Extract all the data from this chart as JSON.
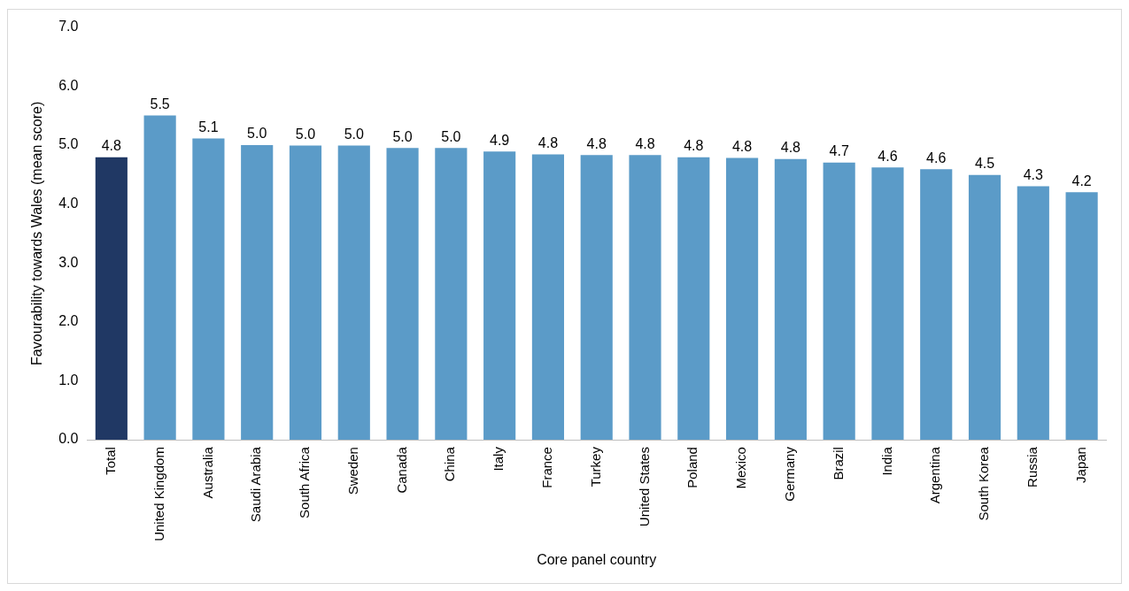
{
  "chart_data": {
    "type": "bar",
    "xlabel": "Core panel country",
    "ylabel": "Favourability towards Wales (mean score)",
    "categories": [
      "Total",
      "United Kingdom",
      "Australia",
      "Saudi Arabia",
      "South Africa",
      "Sweden",
      "Canada",
      "China",
      "Italy",
      "France",
      "Turkey",
      "United States",
      "Poland",
      "Mexico",
      "Germany",
      "Brazil",
      "India",
      "Argentina",
      "South Korea",
      "Russia",
      "Japan"
    ],
    "values": [
      4.79,
      5.5,
      5.11,
      5.0,
      4.99,
      4.99,
      4.95,
      4.95,
      4.89,
      4.84,
      4.83,
      4.83,
      4.79,
      4.78,
      4.76,
      4.7,
      4.62,
      4.59,
      4.49,
      4.3,
      4.2
    ],
    "value_labels": [
      "4.8",
      "5.5",
      "5.1",
      "5.0",
      "5.0",
      "5.0",
      "5.0",
      "5.0",
      "4.9",
      "4.8",
      "4.8",
      "4.8",
      "4.8",
      "4.8",
      "4.8",
      "4.7",
      "4.6",
      "4.6",
      "4.5",
      "4.3",
      "4.2"
    ],
    "colors": [
      "#203864",
      "#5b9bc8",
      "#5b9bc8",
      "#5b9bc8",
      "#5b9bc8",
      "#5b9bc8",
      "#5b9bc8",
      "#5b9bc8",
      "#5b9bc8",
      "#5b9bc8",
      "#5b9bc8",
      "#5b9bc8",
      "#5b9bc8",
      "#5b9bc8",
      "#5b9bc8",
      "#5b9bc8",
      "#5b9bc8",
      "#5b9bc8",
      "#5b9bc8",
      "#5b9bc8",
      "#5b9bc8"
    ],
    "ylim": [
      0,
      7
    ],
    "yticks": [
      {
        "value": 0,
        "label": "0.0"
      },
      {
        "value": 1,
        "label": "1.0"
      },
      {
        "value": 2,
        "label": "2.0"
      },
      {
        "value": 3,
        "label": "3.0"
      },
      {
        "value": 4,
        "label": "4.0"
      },
      {
        "value": 5,
        "label": "5.0"
      },
      {
        "value": 6,
        "label": "6.0"
      },
      {
        "value": 7,
        "label": "7.0"
      }
    ],
    "grid": false,
    "legend": false
  }
}
